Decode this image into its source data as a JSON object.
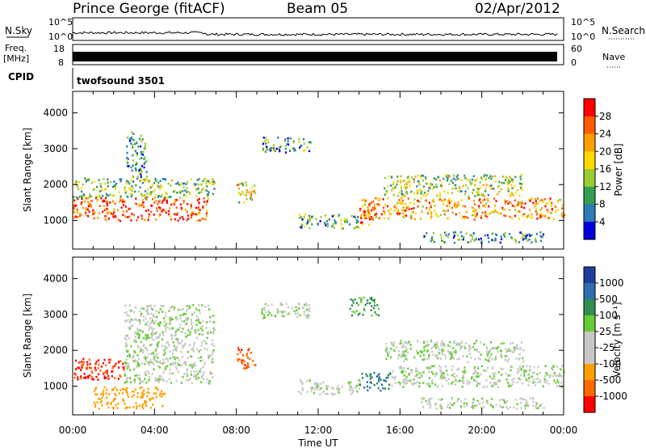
{
  "header": {
    "station": "Prince George (fitACF)",
    "beam": "Beam 05",
    "date": "02/Apr/2012"
  },
  "chart_data": [
    {
      "type": "line",
      "name": "noise_panel",
      "left_label": "N.Sky",
      "right_label": "N.Search",
      "left_ticks": [
        "10^5",
        "10^0"
      ],
      "right_ticks": [
        "10^5",
        "10^0"
      ],
      "x_range_hours": [
        0,
        24
      ]
    },
    {
      "type": "bar",
      "name": "frequency_panel",
      "left_label_top": "Freq.",
      "left_label_bottom": "[MHz]",
      "right_label": "Nave",
      "left_ticks": [
        18,
        8
      ],
      "right_ticks": [
        60,
        0
      ]
    },
    {
      "type": "table",
      "name": "cpid_panel",
      "label": "CPID",
      "program": "twofsound 3501"
    },
    {
      "type": "heatmap",
      "name": "power_panel",
      "ylabel": "Slant Range [km]",
      "yticks": [
        1000,
        2000,
        3000,
        4000
      ],
      "ylim": [
        200,
        4600
      ],
      "xlim_hours": [
        0,
        24
      ],
      "colorbar_label": "Power [dB]",
      "colorbar_ticks": [
        "28",
        "24",
        "20",
        "16",
        "12",
        "8",
        "4"
      ],
      "colorbar_colors": [
        "#ff0000",
        "#ff5a00",
        "#ffa000",
        "#ffd800",
        "#9acd32",
        "#32a050",
        "#2c7ab8",
        "#0000dc"
      ],
      "regions": [
        {
          "start": 0.0,
          "end": 6.6,
          "range_start": 1000,
          "range_end": 1650,
          "level": 0.85
        },
        {
          "start": 0.0,
          "end": 6.9,
          "range_start": 1650,
          "range_end": 2200,
          "level": 0.4
        },
        {
          "start": 2.6,
          "end": 3.6,
          "range_start": 2200,
          "range_end": 3500,
          "level": 0.3
        },
        {
          "start": 8.0,
          "end": 8.9,
          "range_start": 1500,
          "range_end": 2100,
          "level": 0.6
        },
        {
          "start": 9.2,
          "end": 11.6,
          "range_start": 2900,
          "range_end": 3350,
          "level": 0.3
        },
        {
          "start": 11.0,
          "end": 14.0,
          "range_start": 800,
          "range_end": 1200,
          "level": 0.35
        },
        {
          "start": 14.0,
          "end": 14.8,
          "range_start": 900,
          "range_end": 1400,
          "level": 0.75
        },
        {
          "start": 14.0,
          "end": 24.0,
          "range_start": 1050,
          "range_end": 1650,
          "level": 0.7
        },
        {
          "start": 15.2,
          "end": 22.0,
          "range_start": 1700,
          "range_end": 2300,
          "level": 0.45
        },
        {
          "start": 17.0,
          "end": 23.0,
          "range_start": 400,
          "range_end": 700,
          "level": 0.25
        }
      ]
    },
    {
      "type": "heatmap",
      "name": "velocity_panel",
      "ylabel": "Slant Range [km]",
      "yticks": [
        1000,
        2000,
        3000,
        4000
      ],
      "ylim": [
        200,
        4600
      ],
      "xlim_hours": [
        0,
        24
      ],
      "xticks": [
        "00:00",
        "04:00",
        "08:00",
        "12:00",
        "16:00",
        "20:00",
        "00:00"
      ],
      "xlabel": "Time UT",
      "colorbar_label": "Velocity [m s⁻¹]",
      "colorbar_ticks": [
        "1000",
        "500",
        "100",
        "25",
        "-25",
        "-100",
        "-500",
        "-1000"
      ],
      "colorbar_colors": [
        "#1e3c9c",
        "#2e6eb0",
        "#2f8f4f",
        "#66cc33",
        "#c8c8c8",
        "#c8c8c8",
        "#ffa000",
        "#ff6a00",
        "#ff0000"
      ],
      "regions": [
        {
          "start": 0.0,
          "end": 2.5,
          "range_start": 1200,
          "range_end": 1800,
          "velocity": -800
        },
        {
          "start": 1.0,
          "end": 4.5,
          "range_start": 400,
          "range_end": 1000,
          "velocity": -300
        },
        {
          "start": 2.5,
          "end": 6.9,
          "range_start": 1100,
          "range_end": 3300,
          "velocity": 0
        },
        {
          "start": 8.0,
          "end": 8.9,
          "range_start": 1500,
          "range_end": 2100,
          "velocity": -700
        },
        {
          "start": 9.2,
          "end": 11.6,
          "range_start": 2900,
          "range_end": 3350,
          "velocity": 0
        },
        {
          "start": 11.0,
          "end": 14.0,
          "range_start": 800,
          "range_end": 1200,
          "velocity": 0
        },
        {
          "start": 13.5,
          "end": 15.0,
          "range_start": 3000,
          "range_end": 3500,
          "velocity": 150
        },
        {
          "start": 14.0,
          "end": 15.6,
          "range_start": 900,
          "range_end": 1400,
          "velocity": 300
        },
        {
          "start": 15.5,
          "end": 24.0,
          "range_start": 1000,
          "range_end": 1600,
          "velocity": 0
        },
        {
          "start": 15.2,
          "end": 22.0,
          "range_start": 1700,
          "range_end": 2300,
          "velocity": 0
        },
        {
          "start": 17.0,
          "end": 23.0,
          "range_start": 400,
          "range_end": 700,
          "velocity": 0
        }
      ]
    }
  ]
}
